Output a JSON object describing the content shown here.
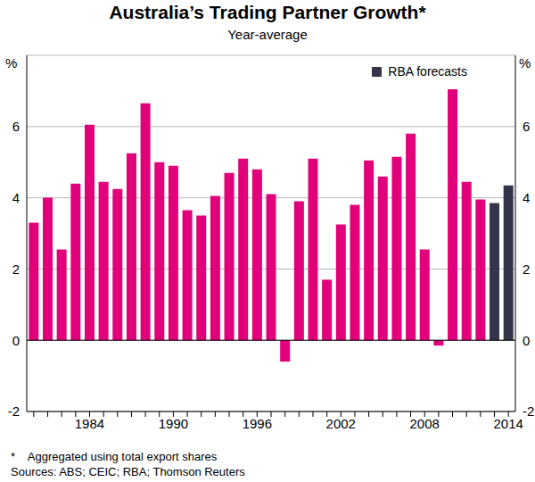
{
  "chart_data": {
    "type": "bar",
    "title": "Australia’s Trading Partner Growth*",
    "subtitle": "Year-average",
    "y_label": "%",
    "footnotes": [
      "*    Aggregated using total export shares",
      "Sources: ABS; CEIC; RBA; Thomson Reuters"
    ],
    "categories": [
      null,
      null,
      null,
      null,
      "1984",
      null,
      null,
      null,
      null,
      null,
      "1990",
      null,
      null,
      null,
      null,
      null,
      "1996",
      null,
      null,
      null,
      null,
      null,
      "2002",
      null,
      null,
      null,
      null,
      null,
      "2008",
      null,
      null,
      null,
      null,
      null,
      "2014"
    ],
    "series": [
      {
        "color": "#e2007a",
        "values": [
          3.3,
          4.0,
          2.55,
          4.4,
          6.05,
          4.45,
          4.25,
          5.25,
          6.65,
          5.0,
          4.9,
          3.65,
          3.5,
          4.05,
          4.7,
          5.1,
          4.8,
          4.1,
          -0.6,
          3.9,
          5.1,
          1.7,
          3.25,
          3.8,
          5.05,
          4.6,
          5.15,
          5.8,
          2.55,
          -0.15,
          7.05,
          4.45,
          3.95,
          null,
          null
        ]
      },
      {
        "name": "RBA forecasts",
        "color": "#34344a",
        "values": [
          null,
          null,
          null,
          null,
          null,
          null,
          null,
          null,
          null,
          null,
          null,
          null,
          null,
          null,
          null,
          null,
          null,
          null,
          null,
          null,
          null,
          null,
          null,
          null,
          null,
          null,
          null,
          null,
          null,
          null,
          null,
          null,
          null,
          3.85,
          4.35
        ]
      }
    ],
    "ylim": [
      -2,
      8
    ],
    "yticks": [
      -2,
      0,
      2,
      4,
      6
    ],
    "grid": true,
    "legend": "top-right"
  }
}
